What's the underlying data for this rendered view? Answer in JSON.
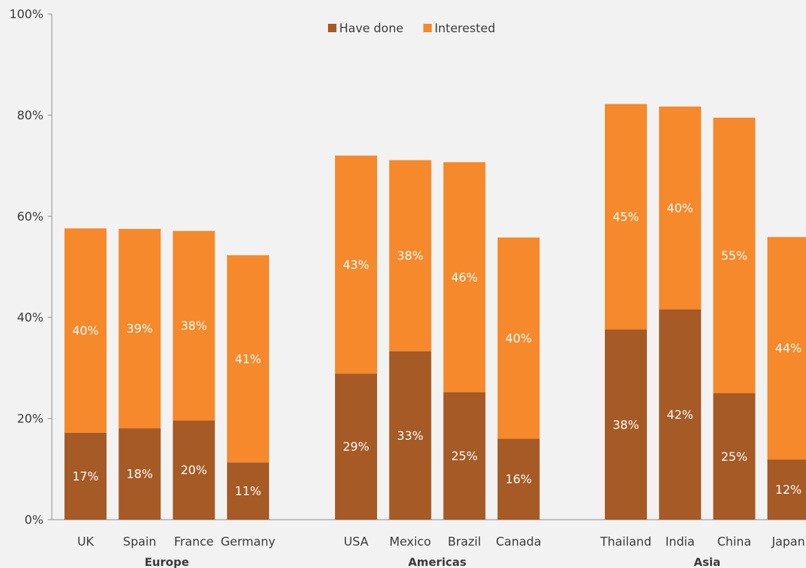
{
  "chart_data": {
    "type": "bar",
    "stacked": true,
    "categories": [
      "UK",
      "Spain",
      "France",
      "Germany",
      "USA",
      "Mexico",
      "Brazil",
      "Canada",
      "Thailand",
      "India",
      "China",
      "Japan"
    ],
    "groups": [
      {
        "label": "Europe",
        "categories": [
          "UK",
          "Spain",
          "France",
          "Germany"
        ]
      },
      {
        "label": "Americas",
        "categories": [
          "USA",
          "Mexico",
          "Brazil",
          "Canada"
        ]
      },
      {
        "label": "Asia",
        "categories": [
          "Thailand",
          "India",
          "China",
          "Japan"
        ]
      }
    ],
    "series": [
      {
        "name": "Have done",
        "color": "#a65a25",
        "values": [
          17.2,
          18.1,
          19.6,
          11.3,
          28.9,
          33.3,
          25.2,
          16.0,
          37.6,
          41.6,
          25.0,
          11.9
        ],
        "labels": [
          "17%",
          "18%",
          "20%",
          "11%",
          "29%",
          "33%",
          "25%",
          "16%",
          "38%",
          "42%",
          "25%",
          "12%"
        ]
      },
      {
        "name": "Interested",
        "color": "#f5892b",
        "values": [
          40.4,
          39.4,
          37.5,
          41.0,
          43.1,
          37.8,
          45.5,
          39.8,
          44.6,
          40.1,
          54.5,
          44.0
        ],
        "labels": [
          "40%",
          "39%",
          "38%",
          "41%",
          "43%",
          "38%",
          "46%",
          "40%",
          "45%",
          "40%",
          "55%",
          "44%"
        ]
      }
    ],
    "y_ticks": [
      "0%",
      "20%",
      "40%",
      "60%",
      "80%",
      "100%"
    ],
    "ylim": [
      0,
      100
    ],
    "legend_position": "top-center",
    "grid": false
  }
}
